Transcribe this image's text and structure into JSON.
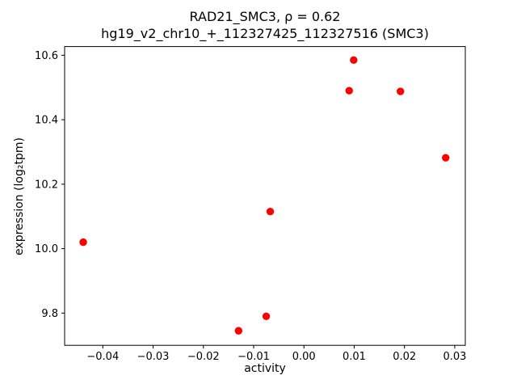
{
  "chart_data": {
    "type": "scatter",
    "title": "RAD21_SMC3, ρ = 0.62",
    "subtitle": "hg19_v2_chr10_+_112327425_112327516 (SMC3)",
    "xlabel": "activity",
    "ylabel": "expression (log₂tpm)",
    "xlim": [
      -0.0476,
      0.0321
    ],
    "ylim": [
      9.7,
      10.627
    ],
    "grid": false,
    "legend_position": "none",
    "marker_color": "#ff0000",
    "axis_color": "#000000",
    "xticks": {
      "values": [
        -0.04,
        -0.03,
        -0.02,
        -0.01,
        0.0,
        0.01,
        0.02,
        0.03
      ],
      "labels": [
        "−0.04",
        "−0.03",
        "−0.02",
        "−0.01",
        "0.00",
        "0.01",
        "0.02",
        "0.03"
      ]
    },
    "yticks": {
      "values": [
        9.8,
        10.0,
        10.2,
        10.4,
        10.6
      ],
      "labels": [
        "9.8",
        "10.0",
        "10.2",
        "10.4",
        "10.6"
      ]
    },
    "points": [
      {
        "x": -0.0439,
        "y": 10.02
      },
      {
        "x": -0.013,
        "y": 9.745
      },
      {
        "x": -0.0075,
        "y": 9.79
      },
      {
        "x": -0.0067,
        "y": 10.115
      },
      {
        "x": 0.009,
        "y": 10.49
      },
      {
        "x": 0.0099,
        "y": 10.585
      },
      {
        "x": 0.0192,
        "y": 10.488
      },
      {
        "x": 0.0282,
        "y": 10.282
      }
    ]
  }
}
